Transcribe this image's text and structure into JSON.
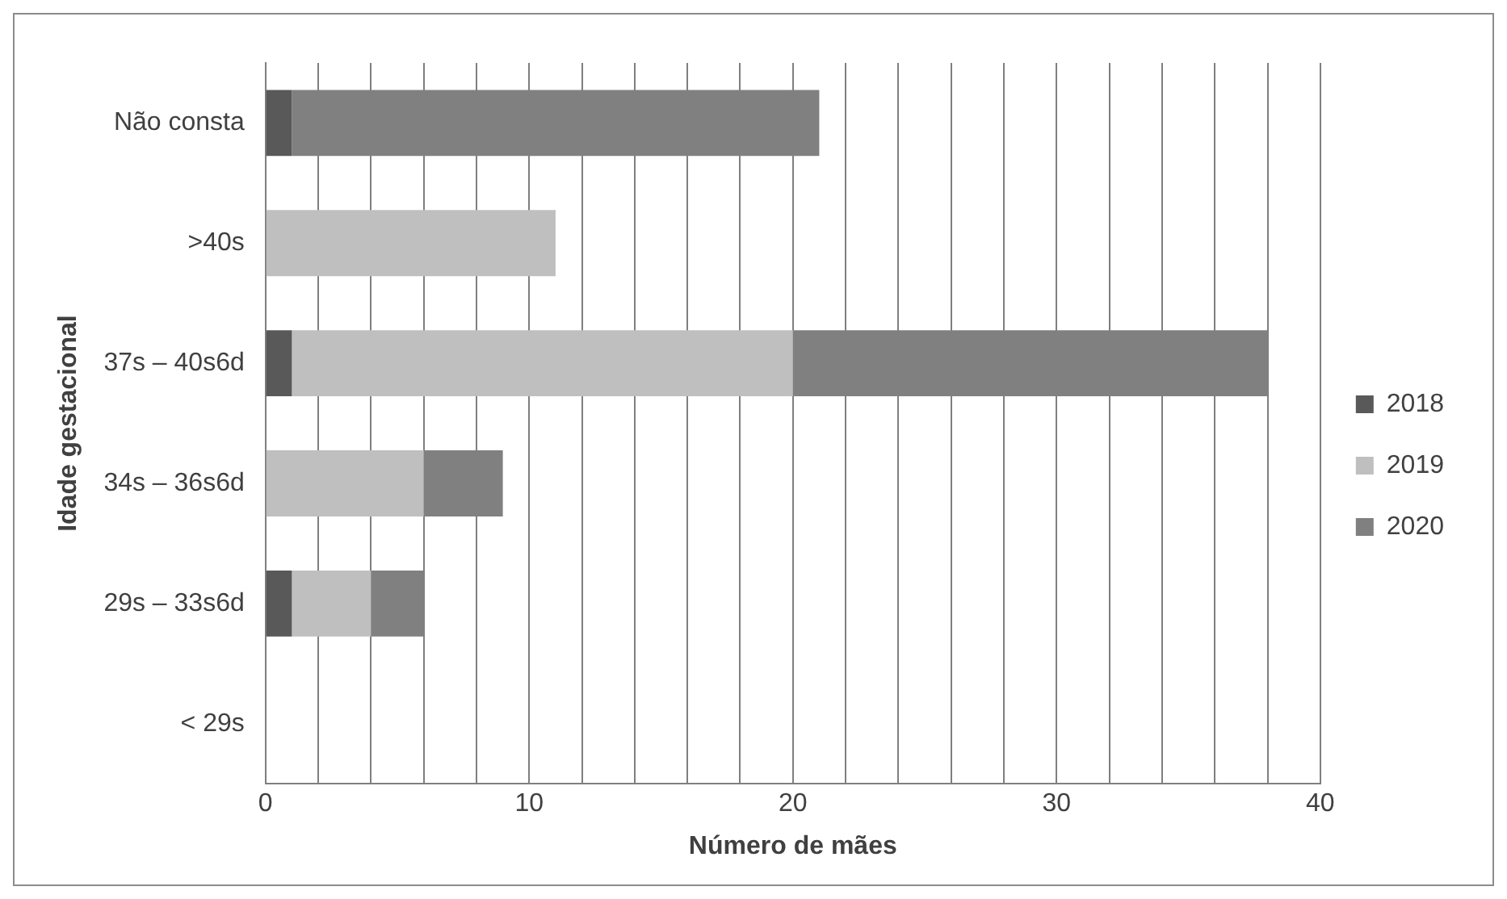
{
  "chart_data": {
    "type": "bar",
    "orientation": "horizontal",
    "stacked": true,
    "xlabel": "Número de mães",
    "ylabel": "Idade gestacional",
    "categories": [
      "Não consta",
      ">40s",
      "37s – 40s6d",
      "34s – 36s6d",
      "29s – 33s6d",
      "< 29s"
    ],
    "series": [
      {
        "name": "2018",
        "color": "#595959",
        "values": [
          1,
          0,
          1,
          0,
          1,
          0
        ]
      },
      {
        "name": "2019",
        "color": "#bfbfbf",
        "values": [
          0,
          11,
          19,
          6,
          3,
          0
        ]
      },
      {
        "name": "2020",
        "color": "#808080",
        "values": [
          20,
          0,
          18,
          3,
          2,
          0
        ]
      }
    ],
    "xlim": [
      0,
      40
    ],
    "xticks": [
      0,
      {
        "value": 2,
        "label": null
      },
      {
        "value": 4,
        "label": null
      },
      {
        "value": 6,
        "label": null
      },
      {
        "value": 8,
        "label": null
      },
      10,
      {
        "value": 12,
        "label": null
      },
      {
        "value": 14,
        "label": null
      },
      {
        "value": 16,
        "label": null
      },
      {
        "value": 18,
        "label": null
      },
      20,
      {
        "value": 22,
        "label": null
      },
      {
        "value": 24,
        "label": null
      },
      {
        "value": 26,
        "label": null
      },
      {
        "value": 28,
        "label": null
      },
      30,
      {
        "value": 32,
        "label": null
      },
      {
        "value": 34,
        "label": null
      },
      {
        "value": 36,
        "label": null
      },
      {
        "value": 38,
        "label": null
      },
      40
    ],
    "grid": "x",
    "legend": "right"
  }
}
